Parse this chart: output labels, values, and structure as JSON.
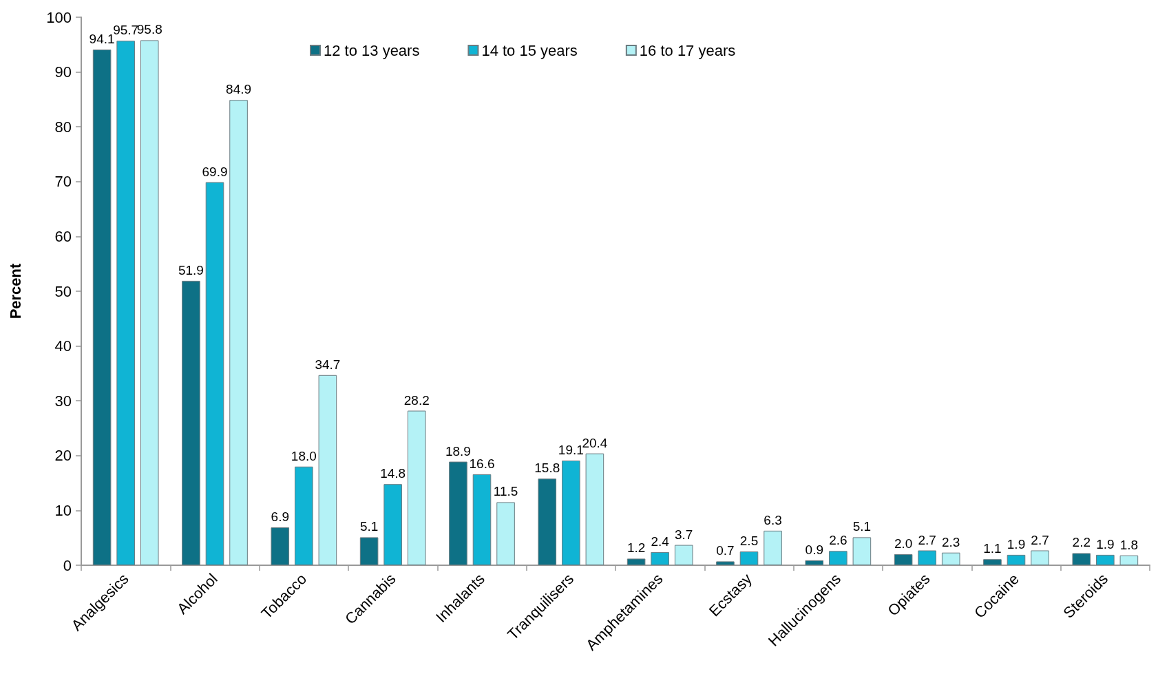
{
  "chart_data": {
    "type": "bar",
    "ylabel": "Percent",
    "categories": [
      "Analgesics",
      "Alcohol",
      "Tobacco",
      "Cannabis",
      "Inhalants",
      "Tranquilisers",
      "Amphetamines",
      "Ecstasy",
      "Hallucinogens",
      "Opiates",
      "Cocaine",
      "Steroids"
    ],
    "series": [
      {
        "name": "12 to 13 years",
        "color": "#0e7186",
        "values": [
          94.1,
          51.9,
          6.9,
          5.1,
          18.9,
          15.8,
          1.2,
          0.7,
          0.9,
          2.0,
          1.1,
          2.2
        ],
        "value_labels": [
          "94.1",
          "51.9",
          "6.9",
          "5.1",
          "18.9",
          "15.8",
          "1.2",
          "0.7",
          "0.9",
          "2.0",
          "1.1",
          "2.2"
        ]
      },
      {
        "name": "14 to 15 years",
        "color": "#10b4d4",
        "values": [
          95.7,
          69.9,
          18.0,
          14.8,
          16.6,
          19.1,
          2.4,
          2.5,
          2.6,
          2.7,
          1.9,
          1.9
        ],
        "value_labels": [
          "95.7",
          "69.9",
          "18.0",
          "14.8",
          "16.6",
          "19.1",
          "2.4",
          "2.5",
          "2.6",
          "2.7",
          "1.9",
          "1.9"
        ]
      },
      {
        "name": "16 to 17 years",
        "color": "#b4f2f6",
        "values": [
          95.8,
          84.9,
          34.7,
          28.2,
          11.5,
          20.4,
          3.7,
          6.3,
          5.1,
          2.3,
          2.7,
          1.8
        ],
        "value_labels": [
          "95.8",
          "84.9",
          "34.7",
          "28.2",
          "11.5",
          "20.4",
          "3.7",
          "6.3",
          "5.1",
          "2.3",
          "2.7",
          "1.8"
        ]
      }
    ],
    "ylim": [
      0,
      100
    ],
    "yticks": [
      0,
      10,
      20,
      30,
      40,
      50,
      60,
      70,
      80,
      90,
      100
    ],
    "grid": false,
    "legend": "top"
  }
}
